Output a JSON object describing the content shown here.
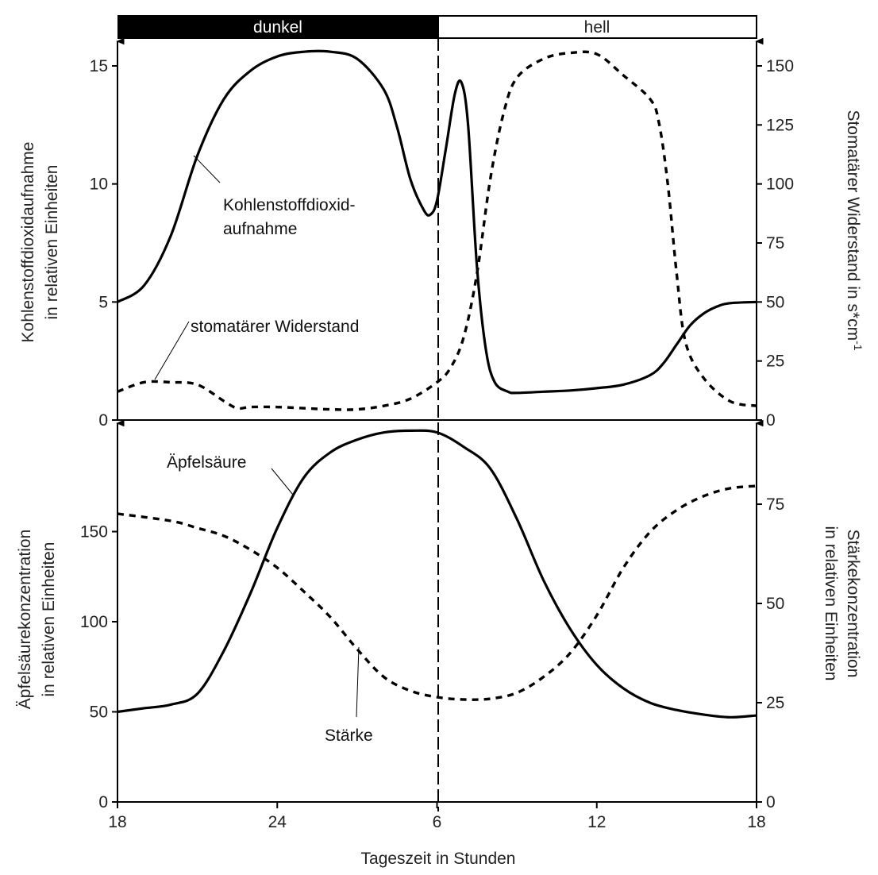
{
  "chart_data": [
    {
      "type": "line",
      "panel": "top",
      "phase_bar": {
        "dark_label": "dunkel",
        "light_label": "hell",
        "dark_color": "#000000",
        "light_color": "#ffffff",
        "transition": "06:00"
      },
      "x_ticks": [
        "18",
        "24",
        "6",
        "12",
        "18"
      ],
      "x_range": [
        "18:00",
        "18:00 (+1 day)"
      ],
      "ylabel_left": [
        "Kohlenstoffdioxidaufnahme",
        "in relativen Einheiten"
      ],
      "ylabel_right": {
        "text": "Stomatärer Widerstand in s*cm",
        "superscript": "-1"
      },
      "ylim_left": [
        0,
        16.2
      ],
      "ylim_right": [
        0,
        162
      ],
      "y_ticks_left": [
        "0",
        "5",
        "10",
        "15"
      ],
      "y_ticks_right": [
        "0",
        "25",
        "50",
        "75",
        "100",
        "125",
        "150"
      ],
      "series": [
        {
          "name": "Kohlenstoffdioxidaufnahme",
          "axis": "left",
          "style": "solid",
          "x": [
            "18:00",
            "19:00",
            "20:00",
            "21:00",
            "22:00",
            "23:00",
            "00:00",
            "01:00",
            "02:00",
            "03:00",
            "04:00",
            "04:30",
            "05:00",
            "05:30",
            "05:45",
            "06:00",
            "06:20",
            "06:40",
            "06:55",
            "07:10",
            "07:30",
            "07:50",
            "08:10",
            "08:40",
            "09:00",
            "10:00",
            "11:00",
            "12:00",
            "13:00",
            "14:00",
            "14:30",
            "15:00",
            "15:30",
            "16:00",
            "16:30",
            "17:00",
            "18:00"
          ],
          "y": [
            5.0,
            5.7,
            7.8,
            11.2,
            13.6,
            14.8,
            15.4,
            15.6,
            15.6,
            15.3,
            14.0,
            12.4,
            10.2,
            8.9,
            8.7,
            9.3,
            11.5,
            13.8,
            14.3,
            12.5,
            6.5,
            3.0,
            1.6,
            1.2,
            1.15,
            1.2,
            1.25,
            1.35,
            1.5,
            1.9,
            2.4,
            3.2,
            4.0,
            4.5,
            4.8,
            4.95,
            5.0
          ]
        },
        {
          "name": "stomatärer Widerstand",
          "axis": "right",
          "style": "dotted",
          "x": [
            "18:00",
            "19:00",
            "20:00",
            "21:00",
            "22:00",
            "22:30",
            "23:00",
            "00:00",
            "01:00",
            "02:00",
            "03:00",
            "04:00",
            "05:00",
            "06:00",
            "06:30",
            "07:00",
            "07:30",
            "08:00",
            "08:30",
            "09:00",
            "10:00",
            "11:00",
            "12:00",
            "13:00",
            "14:00",
            "14:20",
            "14:40",
            "15:00",
            "15:20",
            "16:00",
            "17:00",
            "18:00"
          ],
          "y": [
            12,
            16,
            16,
            15,
            8,
            5,
            5.5,
            5.5,
            5,
            4.5,
            4.5,
            6,
            9,
            16,
            22,
            35,
            62,
            102,
            130,
            145,
            153,
            155.5,
            155,
            146,
            136,
            126,
            100,
            62,
            33,
            18,
            8,
            6
          ]
        }
      ],
      "annotations": [
        "Kohlenstoffdioxid-",
        "aufnahme",
        "stomatärer Widerstand"
      ]
    },
    {
      "type": "line",
      "panel": "bottom",
      "x_ticks": [
        "18",
        "24",
        "6",
        "12",
        "18"
      ],
      "xlabel": "Tageszeit in Stunden",
      "ylabel_left": [
        "Äpfelsäurekonzentration",
        "in relativen Einheiten"
      ],
      "ylabel_right": [
        "Stärkekonzentration",
        "in relativen Einheiten"
      ],
      "ylim_left": [
        0,
        212
      ],
      "ylim_right": [
        0,
        96
      ],
      "y_ticks_left": [
        "0",
        "50",
        "100",
        "150"
      ],
      "y_ticks_right": [
        "0",
        "25",
        "50",
        "75"
      ],
      "series": [
        {
          "name": "Äpfelsäure",
          "axis": "left",
          "style": "solid",
          "x": [
            "18:00",
            "19:00",
            "20:00",
            "21:00",
            "22:00",
            "23:00",
            "00:00",
            "01:00",
            "02:00",
            "03:00",
            "04:00",
            "05:00",
            "06:00",
            "07:00",
            "08:00",
            "09:00",
            "10:00",
            "11:00",
            "12:00",
            "13:00",
            "14:00",
            "15:00",
            "16:00",
            "17:00",
            "18:00"
          ],
          "y": [
            50,
            52,
            54,
            60,
            84,
            116,
            152,
            180,
            194,
            201,
            205,
            206,
            205,
            197,
            185,
            157,
            123,
            96,
            76,
            63,
            55,
            51,
            48.5,
            47,
            48
          ]
        },
        {
          "name": "Stärke",
          "axis": "right",
          "style": "dotted",
          "x": [
            "18:00",
            "20:00",
            "21:00",
            "22:00",
            "23:00",
            "00:00",
            "01:00",
            "02:00",
            "03:00",
            "04:00",
            "05:00",
            "06:00",
            "07:00",
            "08:00",
            "09:00",
            "10:00",
            "11:00",
            "12:00",
            "13:00",
            "14:00",
            "15:00",
            "16:00",
            "17:00",
            "18:00"
          ],
          "y": [
            72.6,
            70.8,
            69,
            67,
            63.5,
            59,
            53,
            46.5,
            38.5,
            31.5,
            28,
            26.4,
            25.8,
            26,
            27.5,
            31.5,
            37.5,
            47,
            59,
            68,
            73.5,
            77,
            79,
            79.6
          ]
        }
      ],
      "annotations": [
        "Äpfelsäure",
        "Stärke"
      ]
    }
  ]
}
